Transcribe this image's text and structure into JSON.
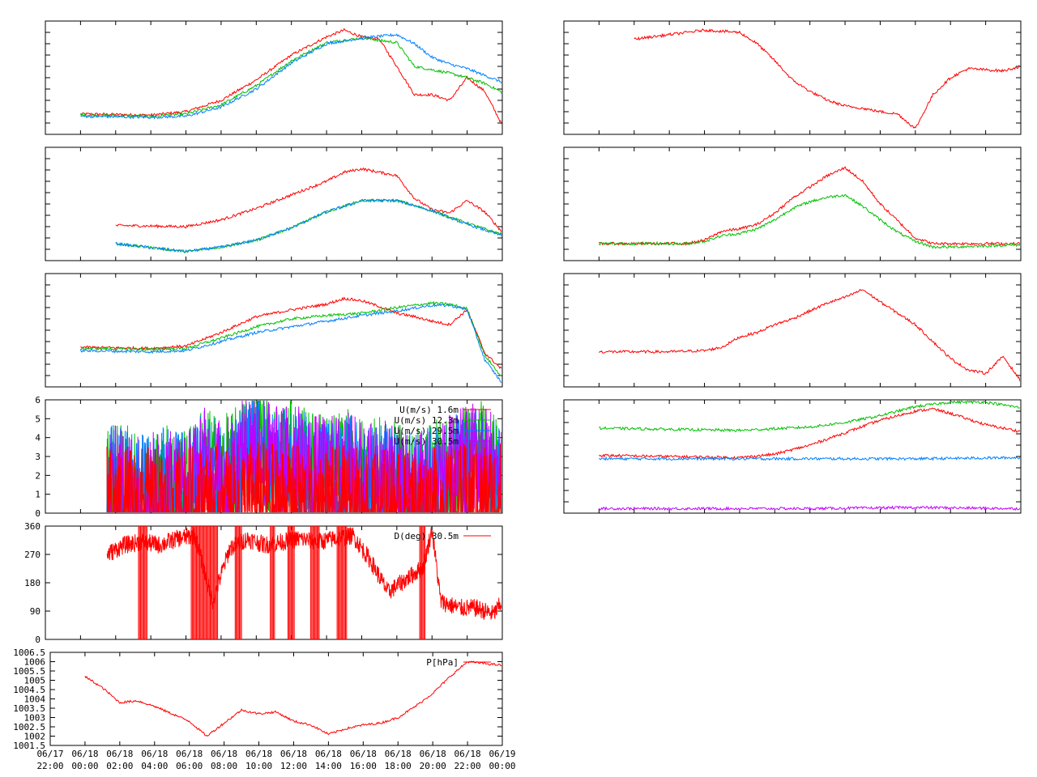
{
  "colors": {
    "red": "#ff0000",
    "green": "#00c000",
    "blue": "#0080ff",
    "purple": "#c000ff",
    "frame": "#000000"
  },
  "x_axis": {
    "range": [
      -2,
      24
    ],
    "ticks": [
      -2,
      0,
      2,
      4,
      6,
      8,
      10,
      12,
      14,
      16,
      18,
      20,
      22,
      24
    ],
    "tick_labels": [
      [
        "06/17",
        "22:00"
      ],
      [
        "06/18",
        "00:00"
      ],
      [
        "06/18",
        "02:00"
      ],
      [
        "06/18",
        "04:00"
      ],
      [
        "06/18",
        "06:00"
      ],
      [
        "06/18",
        "08:00"
      ],
      [
        "06/18",
        "10:00"
      ],
      [
        "06/18",
        "12:00"
      ],
      [
        "06/18",
        "14:00"
      ],
      [
        "06/18",
        "16:00"
      ],
      [
        "06/18",
        "18:00"
      ],
      [
        "06/18",
        "20:00"
      ],
      [
        "06/18",
        "22:00"
      ],
      [
        "06/19",
        "00:00"
      ]
    ]
  },
  "chart_data": [
    {
      "id": "temp-profile",
      "type": "line",
      "ylim": [
        0,
        10
      ],
      "y_ticks_count": 10,
      "y_labels": [],
      "series": [
        {
          "color": "red",
          "x": [
            0,
            4,
            6,
            8,
            10,
            12,
            14,
            15,
            16,
            17,
            18,
            19,
            20,
            21,
            22,
            23,
            24
          ],
          "y": [
            1.8,
            1.7,
            2.0,
            3.0,
            4.8,
            7.0,
            8.6,
            9.2,
            8.6,
            8.4,
            6.0,
            3.5,
            3.5,
            3.0,
            5.0,
            3.8,
            0.8
          ]
        },
        {
          "color": "green",
          "x": [
            0,
            4,
            6,
            8,
            10,
            12,
            14,
            16,
            18,
            19,
            20,
            21,
            22,
            23,
            24
          ],
          "y": [
            1.7,
            1.6,
            1.8,
            2.6,
            4.3,
            6.5,
            8.1,
            8.5,
            8.1,
            6.0,
            5.7,
            5.4,
            5.0,
            4.5,
            3.7
          ]
        },
        {
          "color": "blue",
          "x": [
            0,
            4,
            6,
            8,
            10,
            12,
            14,
            16,
            18,
            19,
            20,
            21,
            22,
            23,
            24
          ],
          "y": [
            1.6,
            1.5,
            1.6,
            2.4,
            4.0,
            6.3,
            8.0,
            8.5,
            8.8,
            8.0,
            6.8,
            6.2,
            5.8,
            5.2,
            4.6
          ]
        }
      ]
    },
    {
      "id": "humidity-profile",
      "type": "line",
      "ylim": [
        0,
        10
      ],
      "y_ticks_count": 10,
      "y_labels": [],
      "series": [
        {
          "color": "red",
          "x": [
            2,
            6,
            8,
            10,
            12,
            14,
            15,
            16,
            17,
            18,
            19,
            20,
            21,
            22,
            23,
            24
          ],
          "y": [
            3.1,
            3.0,
            3.6,
            4.6,
            5.8,
            7.0,
            7.8,
            8.1,
            7.8,
            7.5,
            5.5,
            4.5,
            4.2,
            5.3,
            4.3,
            2.5
          ]
        },
        {
          "color": "green",
          "x": [
            2,
            6,
            8,
            10,
            12,
            14,
            16,
            18,
            20,
            22,
            24
          ],
          "y": [
            1.5,
            0.8,
            1.2,
            1.8,
            2.9,
            4.3,
            5.3,
            5.3,
            4.4,
            3.3,
            2.3
          ]
        },
        {
          "color": "blue",
          "x": [
            2,
            6,
            8,
            10,
            12,
            14,
            16,
            18,
            20,
            22,
            24
          ],
          "y": [
            1.5,
            0.8,
            1.2,
            1.8,
            2.9,
            4.3,
            5.3,
            5.3,
            4.4,
            3.2,
            2.2
          ]
        }
      ]
    },
    {
      "id": "wind-ratio-profile",
      "type": "line",
      "ylim": [
        0,
        10
      ],
      "y_ticks_count": 10,
      "y_labels": [],
      "series": [
        {
          "color": "red",
          "x": [
            0,
            4,
            6,
            8,
            10,
            12,
            14,
            15,
            16,
            17,
            18,
            19,
            20,
            21,
            22,
            23,
            24
          ],
          "y": [
            3.5,
            3.4,
            3.6,
            4.8,
            6.2,
            6.8,
            7.3,
            7.8,
            7.6,
            7.1,
            6.5,
            6.2,
            5.8,
            5.5,
            6.8,
            3.0,
            1.5
          ]
        },
        {
          "color": "green",
          "x": [
            0,
            4,
            6,
            8,
            10,
            12,
            14,
            16,
            18,
            20,
            21,
            22,
            23,
            24
          ],
          "y": [
            3.4,
            3.3,
            3.4,
            4.3,
            5.3,
            6.0,
            6.3,
            6.5,
            7.0,
            7.4,
            7.3,
            6.9,
            2.8,
            0.8
          ]
        },
        {
          "color": "blue",
          "x": [
            0,
            4,
            6,
            8,
            10,
            12,
            14,
            16,
            18,
            20,
            21,
            22,
            23,
            24
          ],
          "y": [
            3.2,
            3.1,
            3.2,
            4.0,
            4.8,
            5.3,
            5.8,
            6.3,
            6.7,
            7.2,
            7.2,
            6.8,
            2.4,
            0.3
          ]
        }
      ]
    },
    {
      "id": "wind-speed",
      "type": "line",
      "ylim": [
        0,
        6
      ],
      "y_ticks_count": 6,
      "y_labels": [
        "0",
        "1",
        "2",
        "3",
        "4",
        "5",
        "6"
      ],
      "legend": [
        {
          "label": "U(m/s)  1.6m",
          "color": "red"
        },
        {
          "label": "U(m/s) 12.3m",
          "color": "green"
        },
        {
          "label": "U(m/s) 29.5m",
          "color": "blue"
        },
        {
          "label": "U(m/s) 30.5m",
          "color": "purple"
        }
      ],
      "series": [
        {
          "color": "green",
          "x": [
            1.5,
            3,
            4,
            5,
            6,
            7,
            8,
            9,
            10,
            11,
            12,
            13,
            14,
            15,
            16,
            17,
            18,
            19,
            20,
            21,
            22,
            23,
            24
          ],
          "y": [
            1.6,
            1.3,
            1.0,
            1.6,
            1.1,
            2.5,
            1.8,
            2.5,
            4.0,
            2.5,
            2.8,
            2.2,
            2.0,
            2.3,
            1.9,
            1.8,
            1.5,
            1.2,
            1.6,
            2.0,
            2.6,
            2.8,
            1.2
          ]
        },
        {
          "color": "blue",
          "x": [
            1.5,
            3,
            4,
            5,
            6,
            7,
            8,
            9,
            10,
            11,
            12,
            13,
            14,
            15,
            16,
            17,
            18,
            19,
            20,
            21,
            22,
            23,
            24
          ],
          "y": [
            1.4,
            1.1,
            0.9,
            1.4,
            1.0,
            2.2,
            1.6,
            2.2,
            3.6,
            2.2,
            2.5,
            2.0,
            1.8,
            2.0,
            1.7,
            1.6,
            1.3,
            1.0,
            1.4,
            1.8,
            2.3,
            2.5,
            1.0
          ]
        },
        {
          "color": "purple",
          "x": [
            1.5,
            3,
            4,
            5,
            6,
            7,
            8,
            9,
            10,
            11,
            12,
            13,
            14,
            15,
            16,
            17,
            18,
            19,
            20,
            21,
            22,
            23,
            24
          ],
          "y": [
            1.5,
            1.2,
            1.0,
            1.5,
            1.1,
            2.4,
            1.7,
            2.4,
            3.8,
            2.4,
            2.7,
            2.1,
            1.9,
            2.2,
            1.8,
            1.7,
            1.4,
            1.1,
            1.5,
            1.9,
            2.5,
            2.7,
            1.1
          ]
        },
        {
          "color": "red",
          "x": [
            1.5,
            4,
            6,
            8,
            10,
            12,
            14,
            16,
            18,
            20,
            22,
            24
          ],
          "y": [
            0.4,
            0.2,
            0.3,
            0.4,
            0.6,
            0.4,
            0.3,
            0.3,
            0.2,
            0.2,
            0.5,
            0.6
          ]
        }
      ]
    },
    {
      "id": "wind-direction",
      "type": "line",
      "ylim": [
        0,
        360
      ],
      "y_ticks_count": 4,
      "y_labels": [
        "0",
        "90",
        "180",
        "270",
        "360"
      ],
      "legend": [
        {
          "label": "D(deg)  30.5m",
          "color": "red"
        }
      ],
      "series": [
        {
          "color": "red",
          "x": [
            1.5,
            2.5,
            3.5,
            4.5,
            5.5,
            6.5,
            7.5,
            8.5,
            9.5,
            10.5,
            11.5,
            12.5,
            13.5,
            14.5,
            15.5,
            16.5,
            17.5,
            18.5,
            19.5,
            20,
            20.5,
            21.5,
            22.5,
            23.5,
            24
          ],
          "y": [
            270,
            300,
            310,
            300,
            320,
            330,
            120,
            290,
            320,
            300,
            310,
            320,
            310,
            320,
            330,
            250,
            150,
            190,
            230,
            350,
            120,
            100,
            100,
            80,
            120
          ]
        }
      ]
    },
    {
      "id": "pressure",
      "type": "line",
      "ylim": [
        1001.5,
        1006.5
      ],
      "y_ticks_count": 10,
      "y_labels": [
        "1001.5",
        "1002",
        "1002.5",
        "1003",
        "1003.5",
        "1004",
        "1004.5",
        "1005",
        "1005.5",
        "1006",
        "1006.5"
      ],
      "legend": [
        {
          "label": "P[hPa]",
          "color": "red"
        }
      ],
      "series": [
        {
          "color": "red",
          "x": [
            0,
            1,
            2,
            3,
            4,
            5,
            6,
            7,
            8,
            9,
            10,
            11,
            12,
            13,
            14,
            15,
            16,
            17,
            18,
            19,
            20,
            21,
            22,
            23,
            24
          ],
          "y": [
            1005.2,
            1004.6,
            1003.8,
            1003.9,
            1003.6,
            1003.2,
            1002.8,
            1002.0,
            1002.7,
            1003.4,
            1003.2,
            1003.3,
            1002.8,
            1002.6,
            1002.1,
            1002.4,
            1002.6,
            1002.7,
            1003.0,
            1003.6,
            1004.3,
            1005.2,
            1006.0,
            1005.9,
            1005.8
          ]
        }
      ]
    },
    {
      "id": "right-top",
      "type": "line",
      "ylim": [
        0,
        10
      ],
      "y_ticks_count": 10,
      "y_labels": [],
      "series": [
        {
          "color": "red",
          "x": [
            2,
            4,
            6,
            8,
            9,
            10,
            11,
            12,
            13,
            14,
            15,
            16,
            17,
            18,
            19,
            20,
            21,
            22,
            23,
            24
          ],
          "y": [
            8.4,
            8.8,
            9.2,
            9.0,
            8.0,
            6.5,
            4.8,
            3.8,
            3.0,
            2.5,
            2.3,
            2.0,
            1.8,
            0.5,
            3.5,
            5.0,
            5.8,
            5.7,
            5.6,
            6.0
          ]
        }
      ]
    },
    {
      "id": "right-second",
      "type": "line",
      "ylim": [
        0,
        10
      ],
      "y_ticks_count": 10,
      "y_labels": [],
      "series": [
        {
          "color": "red",
          "x": [
            0,
            5,
            6,
            7,
            8,
            9,
            10,
            11,
            12,
            13,
            14,
            15,
            16,
            17,
            18,
            19,
            20,
            24
          ],
          "y": [
            1.5,
            1.5,
            1.8,
            2.6,
            2.8,
            3.2,
            4.2,
            5.5,
            6.5,
            7.5,
            8.2,
            7.0,
            5.0,
            3.5,
            2.0,
            1.5,
            1.5,
            1.5
          ]
        },
        {
          "color": "green",
          "x": [
            0,
            5,
            6,
            7,
            8,
            9,
            10,
            11,
            12,
            13,
            14,
            15,
            16,
            17,
            18,
            19,
            20,
            24
          ],
          "y": [
            1.5,
            1.5,
            1.7,
            2.2,
            2.4,
            2.8,
            3.6,
            4.6,
            5.2,
            5.6,
            5.8,
            4.8,
            3.6,
            2.5,
            1.7,
            1.2,
            1.2,
            1.4
          ]
        }
      ]
    },
    {
      "id": "right-third",
      "type": "line",
      "ylim": [
        0,
        10
      ],
      "y_ticks_count": 10,
      "y_labels": [],
      "series": [
        {
          "color": "red",
          "x": [
            0,
            4,
            6,
            7,
            8,
            9,
            10,
            11,
            12,
            13,
            14,
            15,
            16,
            17,
            18,
            19,
            20,
            21,
            22,
            23,
            24
          ],
          "y": [
            3.1,
            3.1,
            3.2,
            3.5,
            4.4,
            4.8,
            5.5,
            6.0,
            6.7,
            7.4,
            7.9,
            8.6,
            7.5,
            6.5,
            5.5,
            4.0,
            2.5,
            1.5,
            1.2,
            2.7,
            0.5
          ]
        }
      ]
    },
    {
      "id": "right-fourth",
      "type": "line",
      "ylim": [
        0,
        10
      ],
      "y_ticks_count": 10,
      "y_labels": [],
      "series": [
        {
          "color": "green",
          "x": [
            0,
            4,
            8,
            12,
            14,
            16,
            18,
            20,
            22,
            24
          ],
          "y": [
            7.5,
            7.4,
            7.3,
            7.6,
            8.0,
            8.6,
            9.4,
            9.8,
            9.8,
            9.3
          ]
        },
        {
          "color": "red",
          "x": [
            0,
            4,
            8,
            10,
            12,
            14,
            16,
            18,
            19,
            20,
            22,
            24
          ],
          "y": [
            5.1,
            5.0,
            4.9,
            5.2,
            6.0,
            7.1,
            8.2,
            9.0,
            9.2,
            8.8,
            7.8,
            7.2
          ]
        },
        {
          "color": "blue",
          "x": [
            0,
            6,
            12,
            18,
            24
          ],
          "y": [
            4.8,
            4.8,
            4.8,
            4.8,
            4.9
          ]
        },
        {
          "color": "purple",
          "x": [
            0,
            6,
            12,
            18,
            24
          ],
          "y": [
            0.4,
            0.4,
            0.4,
            0.5,
            0.4
          ]
        }
      ]
    }
  ]
}
